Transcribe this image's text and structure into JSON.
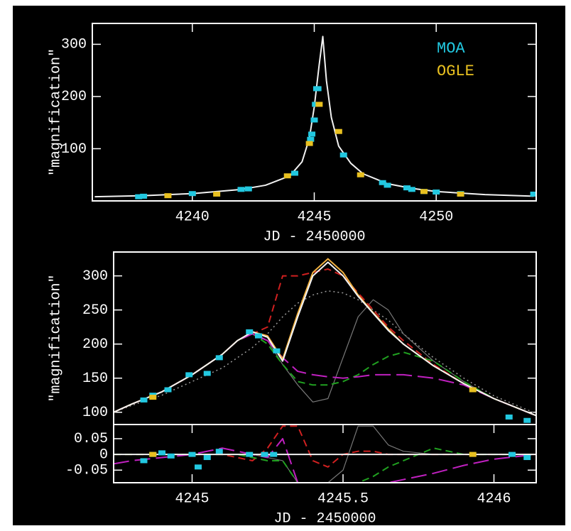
{
  "chart_data": [
    {
      "type": "line",
      "xlabel": "JD - 2450000",
      "ylabel": "\"magnification\"",
      "xlim": [
        4235.9,
        4254.1
      ],
      "ylim": [
        0,
        340
      ],
      "xticks": [
        4240,
        4245,
        4250
      ],
      "yticks": [
        100,
        200,
        300
      ],
      "legend": "upper right",
      "x": [
        4236,
        4238,
        4240,
        4242,
        4243,
        4244,
        4244.5,
        4244.8,
        4245.0,
        4245.2,
        4245.35,
        4245.5,
        4245.7,
        4246,
        4246.5,
        4247,
        4248,
        4249,
        4250,
        4252,
        4254
      ],
      "series": [
        {
          "color": "#f2f2f2",
          "style": "solid",
          "values": [
            8,
            10,
            14,
            22,
            30,
            48,
            75,
            120,
            180,
            260,
            315,
            230,
            160,
            105,
            72,
            52,
            33,
            24,
            18,
            12,
            9
          ]
        },
        {
          "name": "MOA",
          "color": "#22c8e0",
          "style": "points",
          "x": [
            4237.8,
            4238.0,
            4240.0,
            4242.0,
            4242.3,
            4244.2,
            4244.85,
            4244.9,
            4245.0,
            4245.05,
            4245.1,
            4245.15,
            4246.2,
            4247.8,
            4248.0,
            4248.8,
            4249.0,
            4249.5,
            4250.0,
            4251.0,
            4254.0
          ],
          "values": [
            8,
            9,
            14,
            22,
            23,
            53,
            118,
            128,
            155,
            185,
            215,
            215,
            88,
            35,
            30,
            25,
            22,
            18,
            17,
            14,
            13
          ]
        },
        {
          "name": "OGLE",
          "color": "#e8c020",
          "style": "points",
          "x": [
            4239.0,
            4241.0,
            4243.9,
            4244.8,
            4245.2,
            4246.0,
            4246.9,
            4249.5,
            4251.0
          ],
          "values": [
            10,
            13,
            48,
            110,
            185,
            133,
            50,
            18,
            13
          ]
        }
      ]
    },
    {
      "type": "line",
      "ylabel": "\"magnification\"",
      "xlim": [
        4244.74,
        4246.14
      ],
      "ylim": [
        82,
        335
      ],
      "yticks": [
        100,
        150,
        200,
        250,
        300
      ],
      "x": [
        4244.74,
        4244.8,
        4244.9,
        4245.0,
        4245.1,
        4245.15,
        4245.2,
        4245.25,
        4245.3,
        4245.35,
        4245.4,
        4245.45,
        4245.5,
        4245.55,
        4245.6,
        4245.65,
        4245.7,
        4245.8,
        4245.9,
        4246.0,
        4246.14
      ],
      "series": [
        {
          "color": "#999999",
          "style": "dotted",
          "values": [
            100,
            110,
            125,
            145,
            165,
            180,
            195,
            215,
            240,
            260,
            272,
            278,
            275,
            265,
            250,
            235,
            215,
            180,
            150,
            124,
            98
          ]
        },
        {
          "color": "#777777",
          "style": "thin",
          "values": [
            100,
            112,
            130,
            155,
            185,
            205,
            218,
            205,
            170,
            140,
            115,
            120,
            180,
            240,
            265,
            250,
            215,
            175,
            145,
            120,
            95
          ]
        },
        {
          "color": "#d02020",
          "style": "dashed",
          "values": [
            100,
            112,
            130,
            155,
            185,
            205,
            215,
            225,
            300,
            300,
            305,
            310,
            300,
            275,
            250,
            225,
            205,
            170,
            142,
            120,
            95
          ]
        },
        {
          "color": "#20a020",
          "style": "dashed",
          "values": [
            100,
            112,
            130,
            155,
            185,
            205,
            215,
            200,
            170,
            145,
            140,
            140,
            145,
            155,
            170,
            182,
            188,
            175,
            145,
            120,
            95
          ]
        },
        {
          "color": "#c020c0",
          "style": "longdash",
          "values": [
            100,
            112,
            130,
            155,
            185,
            205,
            215,
            205,
            180,
            160,
            155,
            152,
            150,
            152,
            155,
            155,
            155,
            150,
            140,
            120,
            95
          ]
        },
        {
          "color": "#f0b040",
          "style": "solid",
          "values": [
            100,
            112,
            130,
            155,
            185,
            205,
            218,
            212,
            178,
            245,
            305,
            325,
            305,
            272,
            246,
            222,
            200,
            168,
            142,
            120,
            95
          ]
        },
        {
          "color": "#f2f2f2",
          "style": "solid",
          "values": [
            100,
            112,
            130,
            155,
            185,
            205,
            218,
            210,
            175,
            240,
            300,
            320,
            300,
            270,
            245,
            220,
            200,
            168,
            142,
            120,
            95
          ]
        },
        {
          "color": "#22c8e0",
          "style": "points",
          "x": [
            4244.84,
            4244.87,
            4244.92,
            4244.99,
            4245.05,
            4245.09,
            4245.19,
            4245.22,
            4245.28,
            4246.05,
            4246.11
          ],
          "values": [
            118,
            125,
            133,
            155,
            157,
            180,
            218,
            212,
            190,
            93,
            88
          ]
        },
        {
          "color": "#e8c020",
          "style": "points",
          "x": [
            4244.87,
            4245.93
          ],
          "values": [
            122,
            133
          ]
        }
      ]
    },
    {
      "type": "line",
      "xlabel": "JD - 2450000",
      "xlim": [
        4244.74,
        4246.14
      ],
      "ylim": [
        -0.09,
        0.095
      ],
      "xticks": [
        4245,
        4245.5,
        4246
      ],
      "yticks": [
        0.05,
        0,
        -0.05
      ],
      "x": [
        4244.74,
        4244.8,
        4244.9,
        4245.0,
        4245.1,
        4245.15,
        4245.2,
        4245.25,
        4245.3,
        4245.35,
        4245.4,
        4245.45,
        4245.5,
        4245.55,
        4245.6,
        4245.65,
        4245.7,
        4245.8,
        4245.9,
        4246.0,
        4246.14
      ],
      "series": [
        {
          "color": "#777777",
          "style": "thin",
          "values": [
            0,
            0,
            0,
            0,
            0,
            0,
            0,
            -0.01,
            -0.02,
            -0.09,
            -0.09,
            -0.09,
            -0.05,
            0.09,
            0.09,
            0.03,
            0.01,
            0,
            0,
            0,
            0
          ]
        },
        {
          "color": "#d02020",
          "style": "dashed",
          "values": [
            0,
            0,
            0,
            0,
            0,
            -0.01,
            -0.02,
            0.02,
            0.09,
            0.09,
            -0.02,
            -0.04,
            0,
            0.01,
            0.01,
            0,
            0,
            0,
            0,
            0,
            0
          ]
        },
        {
          "color": "#20a020",
          "style": "dashed",
          "values": [
            0,
            0,
            0,
            0,
            0,
            0,
            -0.01,
            -0.02,
            -0.02,
            -0.09,
            -0.09,
            -0.09,
            -0.09,
            -0.09,
            -0.07,
            -0.04,
            -0.02,
            0.02,
            0,
            0,
            0
          ]
        },
        {
          "color": "#c020c0",
          "style": "longdash",
          "values": [
            -0.03,
            -0.02,
            -0.01,
            0,
            0.02,
            0.01,
            0,
            -0.01,
            0.05,
            -0.09,
            -0.09,
            -0.09,
            -0.09,
            -0.09,
            -0.09,
            -0.09,
            -0.08,
            -0.06,
            -0.035,
            -0.015,
            0
          ]
        },
        {
          "color": "#f2f2f2",
          "style": "solid",
          "x": [
            4244.74,
            4246.14
          ],
          "values": [
            0,
            0
          ]
        },
        {
          "color": "#22c8e0",
          "style": "points",
          "x": [
            4244.84,
            4244.87,
            4244.9,
            4244.93,
            4245.0,
            4245.02,
            4245.05,
            4245.09,
            4245.19,
            4245.24,
            4245.27,
            4246.06,
            4246.11
          ],
          "values": [
            -0.02,
            0,
            0.005,
            -0.005,
            0,
            -0.04,
            -0.01,
            0.01,
            0,
            0,
            0,
            0,
            -0.01
          ]
        },
        {
          "color": "#e8c020",
          "style": "points",
          "x": [
            4244.87,
            4245.93
          ],
          "values": [
            0,
            0
          ]
        }
      ]
    }
  ]
}
